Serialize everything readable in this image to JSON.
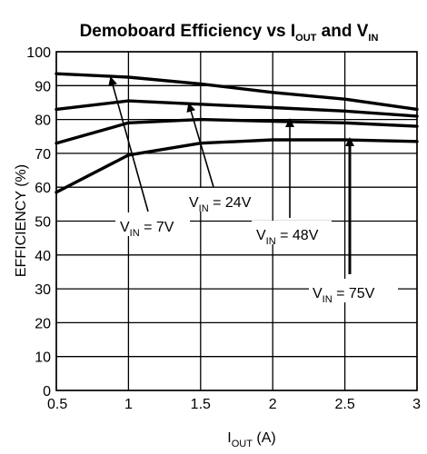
{
  "chart_data": {
    "type": "line",
    "title": {
      "main": "Demoboard Efficiency vs I",
      "sub1": "OUT",
      "mid": " and V",
      "sub2": "IN"
    },
    "xlabel": {
      "main": "I",
      "sub": "OUT",
      "tail": " (A)"
    },
    "ylabel": "EFFICIENCY (%)",
    "xlim": [
      0.5,
      3
    ],
    "ylim": [
      0,
      100
    ],
    "xticks": [
      "0.5",
      "1",
      "1.5",
      "2",
      "2.5",
      "3"
    ],
    "yticks": [
      "0",
      "10",
      "20",
      "30",
      "40",
      "50",
      "60",
      "70",
      "80",
      "90",
      "100"
    ],
    "grid": true,
    "series": [
      {
        "name": "V_IN = 7V",
        "x": [
          0.5,
          1,
          1.5,
          2,
          2.5,
          3
        ],
        "y": [
          93.5,
          92.5,
          90.5,
          88,
          86,
          83
        ]
      },
      {
        "name": "V_IN = 24V",
        "x": [
          0.5,
          1,
          1.5,
          2,
          2.5,
          3
        ],
        "y": [
          83,
          85.5,
          84.5,
          83.5,
          82.5,
          81
        ]
      },
      {
        "name": "V_IN = 48V",
        "x": [
          0.5,
          1,
          1.5,
          2,
          2.5,
          3
        ],
        "y": [
          73,
          79,
          80,
          79.5,
          79,
          78
        ]
      },
      {
        "name": "V_IN = 75V",
        "x": [
          0.5,
          1,
          1.5,
          2,
          2.5,
          3
        ],
        "y": [
          58.5,
          69.5,
          73,
          74,
          74,
          73.5
        ]
      }
    ],
    "annotations": [
      {
        "text_main": "V",
        "text_sub": "IN",
        "text_tail": " = 7V",
        "series": "V_IN = 7V"
      },
      {
        "text_main": "V",
        "text_sub": "IN",
        "text_tail": " = 24V",
        "series": "V_IN = 24V"
      },
      {
        "text_main": "V",
        "text_sub": "IN",
        "text_tail": " = 48V",
        "series": "V_IN = 48V"
      },
      {
        "text_main": "V",
        "text_sub": "IN",
        "text_tail": " = 75V",
        "series": "V_IN = 75V"
      }
    ]
  }
}
